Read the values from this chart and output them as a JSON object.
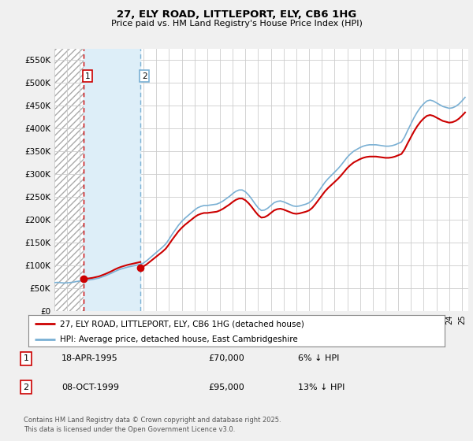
{
  "title": "27, ELY ROAD, LITTLEPORT, ELY, CB6 1HG",
  "subtitle": "Price paid vs. HM Land Registry's House Price Index (HPI)",
  "hpi_color": "#7ab0d4",
  "price_paid_color": "#cc0000",
  "vline1_color": "#cc0000",
  "vline2_color": "#7ab0d4",
  "annotation1": {
    "label": "1",
    "year": 1995.29,
    "value": 70000
  },
  "annotation2": {
    "label": "2",
    "year": 1999.77,
    "value": 95000
  },
  "legend_entry1": "27, ELY ROAD, LITTLEPORT, ELY, CB6 1HG (detached house)",
  "legend_entry2": "HPI: Average price, detached house, East Cambridgeshire",
  "table_entries": [
    {
      "num": "1",
      "date": "18-APR-1995",
      "price": "£70,000",
      "hpi": "6% ↓ HPI"
    },
    {
      "num": "2",
      "date": "08-OCT-1999",
      "price": "£95,000",
      "hpi": "13% ↓ HPI"
    }
  ],
  "footnote": "Contains HM Land Registry data © Crown copyright and database right 2025.\nThis data is licensed under the Open Government Licence v3.0.",
  "ylim": [
    0,
    575000
  ],
  "yticks": [
    0,
    50000,
    100000,
    150000,
    200000,
    250000,
    300000,
    350000,
    400000,
    450000,
    500000,
    550000
  ],
  "xlim": [
    1993.0,
    2025.5
  ],
  "fig_bg_color": "#f0f0f0",
  "plot_bg_color": "#ffffff",
  "hatch_bg_color": "#f8f8f8",
  "between_fill_color": "#ddeef8",
  "hpi_data": [
    [
      1993.0,
      62000
    ],
    [
      1993.25,
      62500
    ],
    [
      1993.5,
      61800
    ],
    [
      1993.75,
      61200
    ],
    [
      1994.0,
      61500
    ],
    [
      1994.25,
      62200
    ],
    [
      1994.5,
      63000
    ],
    [
      1994.75,
      64500
    ],
    [
      1995.0,
      65500
    ],
    [
      1995.25,
      66500
    ],
    [
      1995.5,
      67200
    ],
    [
      1995.75,
      68000
    ],
    [
      1996.0,
      69000
    ],
    [
      1996.25,
      70500
    ],
    [
      1996.5,
      72000
    ],
    [
      1996.75,
      74500
    ],
    [
      1997.0,
      77000
    ],
    [
      1997.25,
      80000
    ],
    [
      1997.5,
      83000
    ],
    [
      1997.75,
      86500
    ],
    [
      1998.0,
      89500
    ],
    [
      1998.25,
      92000
    ],
    [
      1998.5,
      94000
    ],
    [
      1998.75,
      96000
    ],
    [
      1999.0,
      97500
    ],
    [
      1999.25,
      99000
    ],
    [
      1999.5,
      100500
    ],
    [
      1999.75,
      102000
    ],
    [
      2000.0,
      105000
    ],
    [
      2000.25,
      110000
    ],
    [
      2000.5,
      116000
    ],
    [
      2000.75,
      122000
    ],
    [
      2001.0,
      128000
    ],
    [
      2001.25,
      134000
    ],
    [
      2001.5,
      140000
    ],
    [
      2001.75,
      147000
    ],
    [
      2002.0,
      157000
    ],
    [
      2002.25,
      168000
    ],
    [
      2002.5,
      178000
    ],
    [
      2002.75,
      188000
    ],
    [
      2003.0,
      196000
    ],
    [
      2003.25,
      203000
    ],
    [
      2003.5,
      209000
    ],
    [
      2003.75,
      215000
    ],
    [
      2004.0,
      221000
    ],
    [
      2004.25,
      226000
    ],
    [
      2004.5,
      229000
    ],
    [
      2004.75,
      231000
    ],
    [
      2005.0,
      231000
    ],
    [
      2005.25,
      232000
    ],
    [
      2005.5,
      233000
    ],
    [
      2005.75,
      234000
    ],
    [
      2006.0,
      237000
    ],
    [
      2006.25,
      241000
    ],
    [
      2006.5,
      246000
    ],
    [
      2006.75,
      251000
    ],
    [
      2007.0,
      257000
    ],
    [
      2007.25,
      262000
    ],
    [
      2007.5,
      265000
    ],
    [
      2007.75,
      265000
    ],
    [
      2008.0,
      261000
    ],
    [
      2008.25,
      254000
    ],
    [
      2008.5,
      245000
    ],
    [
      2008.75,
      235000
    ],
    [
      2009.0,
      226000
    ],
    [
      2009.25,
      220000
    ],
    [
      2009.5,
      221000
    ],
    [
      2009.75,
      225000
    ],
    [
      2010.0,
      231000
    ],
    [
      2010.25,
      237000
    ],
    [
      2010.5,
      240000
    ],
    [
      2010.75,
      241000
    ],
    [
      2011.0,
      239000
    ],
    [
      2011.25,
      236000
    ],
    [
      2011.5,
      233000
    ],
    [
      2011.75,
      230000
    ],
    [
      2012.0,
      229000
    ],
    [
      2012.25,
      230000
    ],
    [
      2012.5,
      232000
    ],
    [
      2012.75,
      234000
    ],
    [
      2013.0,
      237000
    ],
    [
      2013.25,
      243000
    ],
    [
      2013.5,
      252000
    ],
    [
      2013.75,
      262000
    ],
    [
      2014.0,
      272000
    ],
    [
      2014.25,
      282000
    ],
    [
      2014.5,
      290000
    ],
    [
      2014.75,
      297000
    ],
    [
      2015.0,
      304000
    ],
    [
      2015.25,
      311000
    ],
    [
      2015.5,
      319000
    ],
    [
      2015.75,
      328000
    ],
    [
      2016.0,
      337000
    ],
    [
      2016.25,
      344000
    ],
    [
      2016.5,
      350000
    ],
    [
      2016.75,
      354000
    ],
    [
      2017.0,
      358000
    ],
    [
      2017.25,
      361000
    ],
    [
      2017.5,
      363000
    ],
    [
      2017.75,
      364000
    ],
    [
      2018.0,
      364000
    ],
    [
      2018.25,
      364000
    ],
    [
      2018.5,
      363000
    ],
    [
      2018.75,
      362000
    ],
    [
      2019.0,
      361000
    ],
    [
      2019.25,
      361000
    ],
    [
      2019.5,
      362000
    ],
    [
      2019.75,
      364000
    ],
    [
      2020.0,
      367000
    ],
    [
      2020.25,
      370000
    ],
    [
      2020.5,
      381000
    ],
    [
      2020.75,
      396000
    ],
    [
      2021.0,
      410000
    ],
    [
      2021.25,
      424000
    ],
    [
      2021.5,
      436000
    ],
    [
      2021.75,
      446000
    ],
    [
      2022.0,
      454000
    ],
    [
      2022.25,
      460000
    ],
    [
      2022.5,
      462000
    ],
    [
      2022.75,
      460000
    ],
    [
      2023.0,
      456000
    ],
    [
      2023.25,
      452000
    ],
    [
      2023.5,
      448000
    ],
    [
      2023.75,
      446000
    ],
    [
      2024.0,
      444000
    ],
    [
      2024.25,
      445000
    ],
    [
      2024.5,
      448000
    ],
    [
      2024.75,
      453000
    ],
    [
      2025.0,
      460000
    ],
    [
      2025.25,
      468000
    ]
  ],
  "price_paid_points": [
    [
      1995.29,
      70000
    ],
    [
      1999.77,
      95000
    ]
  ]
}
